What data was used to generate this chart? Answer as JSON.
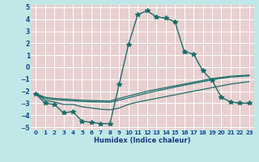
{
  "xlabel": "Humidex (Indice chaleur)",
  "xlim": [
    -0.5,
    23.5
  ],
  "ylim": [
    -5.2,
    5.2
  ],
  "xtick_labels": [
    "0",
    "1",
    "2",
    "3",
    "4",
    "5",
    "6",
    "7",
    "8",
    "9",
    "10",
    "11",
    "12",
    "13",
    "14",
    "15",
    "16",
    "17",
    "18",
    "19",
    "20",
    "21",
    "22",
    "23"
  ],
  "xticks": [
    0,
    1,
    2,
    3,
    4,
    5,
    6,
    7,
    8,
    9,
    10,
    11,
    12,
    13,
    14,
    15,
    16,
    17,
    18,
    19,
    20,
    21,
    22,
    23
  ],
  "yticks": [
    -5,
    -4,
    -3,
    -2,
    -1,
    0,
    1,
    2,
    3,
    4,
    5
  ],
  "outer_bg": "#c0e8e8",
  "plot_bg": "#e8d0d0",
  "grid_color": "#ffffff",
  "line_color": "#1a6e6a",
  "series": [
    {
      "x": [
        0,
        1,
        2,
        3,
        4,
        5,
        6,
        7,
        8,
        9,
        10,
        11,
        12,
        13,
        14,
        15,
        16,
        17,
        18,
        19,
        20,
        21,
        22,
        23
      ],
      "y": [
        -2.2,
        -3.0,
        -3.1,
        -3.8,
        -3.7,
        -4.5,
        -4.6,
        -4.7,
        -4.7,
        -1.4,
        1.9,
        4.4,
        4.7,
        4.2,
        4.1,
        3.8,
        1.3,
        1.1,
        -0.3,
        -1.1,
        -2.5,
        -2.9,
        -3.0,
        -3.0
      ],
      "marker": "*",
      "markersize": 4,
      "linewidth": 1.0,
      "linestyle": "-"
    },
    {
      "x": [
        0,
        1,
        2,
        3,
        4,
        5,
        6,
        7,
        8,
        9,
        10,
        11,
        12,
        13,
        14,
        15,
        16,
        17,
        18,
        19,
        20,
        21,
        22,
        23
      ],
      "y": [
        -2.2,
        -2.5,
        -2.6,
        -2.65,
        -2.7,
        -2.75,
        -2.78,
        -2.8,
        -2.82,
        -2.6,
        -2.4,
        -2.2,
        -2.0,
        -1.85,
        -1.7,
        -1.55,
        -1.4,
        -1.25,
        -1.1,
        -0.95,
        -0.85,
        -0.75,
        -0.7,
        -0.65
      ],
      "marker": null,
      "markersize": 0,
      "linewidth": 0.9,
      "linestyle": "-"
    },
    {
      "x": [
        0,
        1,
        2,
        3,
        4,
        5,
        6,
        7,
        8,
        9,
        10,
        11,
        12,
        13,
        14,
        15,
        16,
        17,
        18,
        19,
        20,
        21,
        22,
        23
      ],
      "y": [
        -2.2,
        -2.6,
        -2.7,
        -2.75,
        -2.8,
        -2.85,
        -2.88,
        -2.9,
        -2.92,
        -2.75,
        -2.55,
        -2.35,
        -2.15,
        -1.98,
        -1.82,
        -1.65,
        -1.5,
        -1.35,
        -1.2,
        -1.05,
        -0.92,
        -0.82,
        -0.77,
        -0.72
      ],
      "marker": null,
      "markersize": 0,
      "linewidth": 0.9,
      "linestyle": "-"
    },
    {
      "x": [
        0,
        1,
        2,
        3,
        4,
        5,
        6,
        7,
        8,
        9,
        10,
        11,
        12,
        13,
        14,
        15,
        16,
        17,
        18,
        19,
        20,
        21,
        22,
        23
      ],
      "y": [
        -2.2,
        -2.75,
        -2.9,
        -3.1,
        -3.1,
        -3.3,
        -3.4,
        -3.5,
        -3.55,
        -3.4,
        -3.1,
        -2.9,
        -2.75,
        -2.6,
        -2.45,
        -2.3,
        -2.15,
        -2.0,
        -1.85,
        -1.7,
        -1.55,
        -1.4,
        -1.3,
        -1.2
      ],
      "marker": null,
      "markersize": 0,
      "linewidth": 0.9,
      "linestyle": "-"
    }
  ]
}
